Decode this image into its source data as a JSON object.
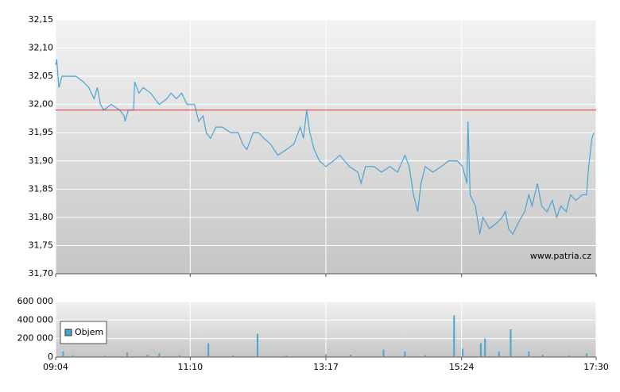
{
  "chart_data": [
    {
      "type": "line",
      "watermark": "www.patria.cz",
      "color": "#4aa3d3",
      "reference_value": 31.99,
      "reference_color": "#e03030",
      "grid": true,
      "xlim": [
        "09:04",
        "17:30"
      ],
      "ylim": [
        31.7,
        32.15
      ],
      "yticks": [
        {
          "value": 31.7,
          "label": "31,70"
        },
        {
          "value": 31.75,
          "label": "31,75"
        },
        {
          "value": 31.8,
          "label": "31,80"
        },
        {
          "value": 31.85,
          "label": "31,85"
        },
        {
          "value": 31.9,
          "label": "31,90"
        },
        {
          "value": 31.95,
          "label": "31,95"
        },
        {
          "value": 32.0,
          "label": "32,00"
        },
        {
          "value": 32.05,
          "label": "32,05"
        },
        {
          "value": 32.1,
          "label": "32,10"
        },
        {
          "value": 32.15,
          "label": "32,15"
        }
      ],
      "x": [
        "09:04",
        "09:05",
        "09:07",
        "09:10",
        "09:15",
        "09:23",
        "09:30",
        "09:35",
        "09:40",
        "09:43",
        "09:46",
        "09:49",
        "09:56",
        "10:04",
        "10:08",
        "10:09",
        "10:12",
        "10:17",
        "10:18",
        "10:22",
        "10:26",
        "10:33",
        "10:37",
        "10:41",
        "10:48",
        "10:52",
        "10:57",
        "11:02",
        "11:07",
        "11:14",
        "11:18",
        "11:22",
        "11:25",
        "11:29",
        "11:34",
        "11:40",
        "11:48",
        "11:55",
        "11:59",
        "12:03",
        "12:09",
        "12:14",
        "12:19",
        "12:25",
        "12:32",
        "12:40",
        "12:47",
        "12:53",
        "12:56",
        "12:59",
        "13:02",
        "13:06",
        "13:11",
        "13:17",
        "13:24",
        "13:30",
        "13:39",
        "13:47",
        "13:50",
        "13:54",
        "14:02",
        "14:09",
        "14:17",
        "14:24",
        "14:31",
        "14:35",
        "14:39",
        "14:43",
        "14:46",
        "14:50",
        "14:57",
        "15:05",
        "15:12",
        "15:20",
        "15:25",
        "15:29",
        "15:30",
        "15:32",
        "15:37",
        "15:41",
        "15:44",
        "15:50",
        "15:57",
        "16:02",
        "16:05",
        "16:08",
        "16:12",
        "16:17",
        "16:23",
        "16:27",
        "16:30",
        "16:35",
        "16:39",
        "16:44",
        "16:49",
        "16:53",
        "16:57",
        "17:02",
        "17:06",
        "17:11",
        "17:17",
        "17:21",
        "17:23",
        "17:26",
        "17:28"
      ],
      "values": [
        32.07,
        32.08,
        32.03,
        32.05,
        32.05,
        32.05,
        32.04,
        32.03,
        32.01,
        32.03,
        32.0,
        31.99,
        32.0,
        31.99,
        31.98,
        31.97,
        31.99,
        31.99,
        32.04,
        32.02,
        32.03,
        32.02,
        32.01,
        32.0,
        32.01,
        32.02,
        32.01,
        32.02,
        32.0,
        32.0,
        31.97,
        31.98,
        31.95,
        31.94,
        31.96,
        31.96,
        31.95,
        31.95,
        31.93,
        31.92,
        31.95,
        31.95,
        31.94,
        31.93,
        31.91,
        31.92,
        31.93,
        31.96,
        31.94,
        31.99,
        31.95,
        31.92,
        31.9,
        31.89,
        31.9,
        31.91,
        31.89,
        31.88,
        31.86,
        31.89,
        31.89,
        31.88,
        31.89,
        31.88,
        31.91,
        31.89,
        31.84,
        31.81,
        31.86,
        31.89,
        31.88,
        31.89,
        31.9,
        31.9,
        31.89,
        31.86,
        31.97,
        31.84,
        31.82,
        31.77,
        31.8,
        31.78,
        31.79,
        31.8,
        31.81,
        31.78,
        31.77,
        31.79,
        31.81,
        31.84,
        31.82,
        31.86,
        31.82,
        31.81,
        31.83,
        31.8,
        31.82,
        31.81,
        31.84,
        31.83,
        31.84,
        31.84,
        31.89,
        31.94,
        31.95
      ]
    },
    {
      "type": "bar",
      "legend": "upper left",
      "grid": true,
      "xlim": [
        "09:04",
        "17:30"
      ],
      "xticks": [
        "09:04",
        "11:10",
        "13:17",
        "15:24",
        "17:30"
      ],
      "ylim": [
        0,
        600000
      ],
      "yticks": [
        0,
        {
          "value": 200000,
          "label": "200 000"
        },
        {
          "value": 400000,
          "label": "400 000"
        },
        {
          "value": 600000,
          "label": "600 000"
        }
      ],
      "x": [
        "09:11",
        "09:20",
        "09:50",
        "10:11",
        "10:30",
        "10:41",
        "11:00",
        "11:27",
        "11:50",
        "12:13",
        "12:40",
        "13:17",
        "13:40",
        "14:11",
        "14:31",
        "14:50",
        "15:17",
        "15:25",
        "15:42",
        "15:46",
        "15:59",
        "16:10",
        "16:27",
        "16:40",
        "17:05",
        "17:21"
      ],
      "series": [
        {
          "name": "Objem",
          "color": "#4aa3d3",
          "values": [
            60000,
            20000,
            15000,
            50000,
            25000,
            40000,
            20000,
            150000,
            20000,
            250000,
            15000,
            30000,
            25000,
            80000,
            60000,
            20000,
            450000,
            90000,
            150000,
            200000,
            60000,
            300000,
            60000,
            25000,
            20000,
            40000
          ]
        }
      ]
    }
  ]
}
